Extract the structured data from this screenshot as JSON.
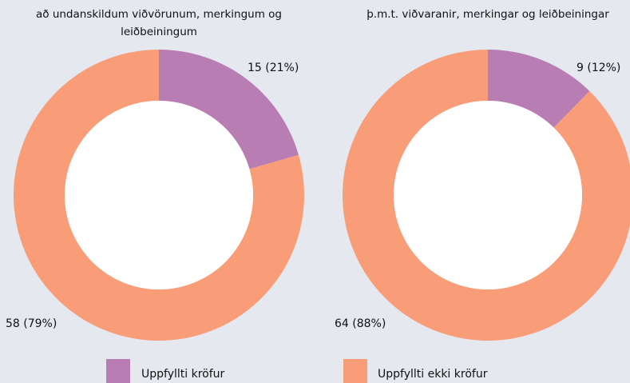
{
  "chart_data": [
    {
      "type": "donut",
      "title": "að undanskildum viðvörunum, merkingum og leiðbeiningum",
      "categories": [
        "Uppfyllti kröfur",
        "Uppfyllti ekki kröfur"
      ],
      "values": [
        15,
        58
      ],
      "value_labels": [
        "15 (21%)",
        "58 (79%)"
      ],
      "colors": [
        "#b87db3",
        "#f89d78"
      ]
    },
    {
      "type": "donut",
      "title": "þ.m.t. viðvaranir, merkingar og leiðbeiningar",
      "categories": [
        "Uppfyllti kröfur",
        "Uppfyllti ekki kröfur"
      ],
      "values": [
        9,
        64
      ],
      "value_labels": [
        "9 (12%)",
        "64 (88%)"
      ],
      "colors": [
        "#b87db3",
        "#f89d78"
      ]
    }
  ]
}
